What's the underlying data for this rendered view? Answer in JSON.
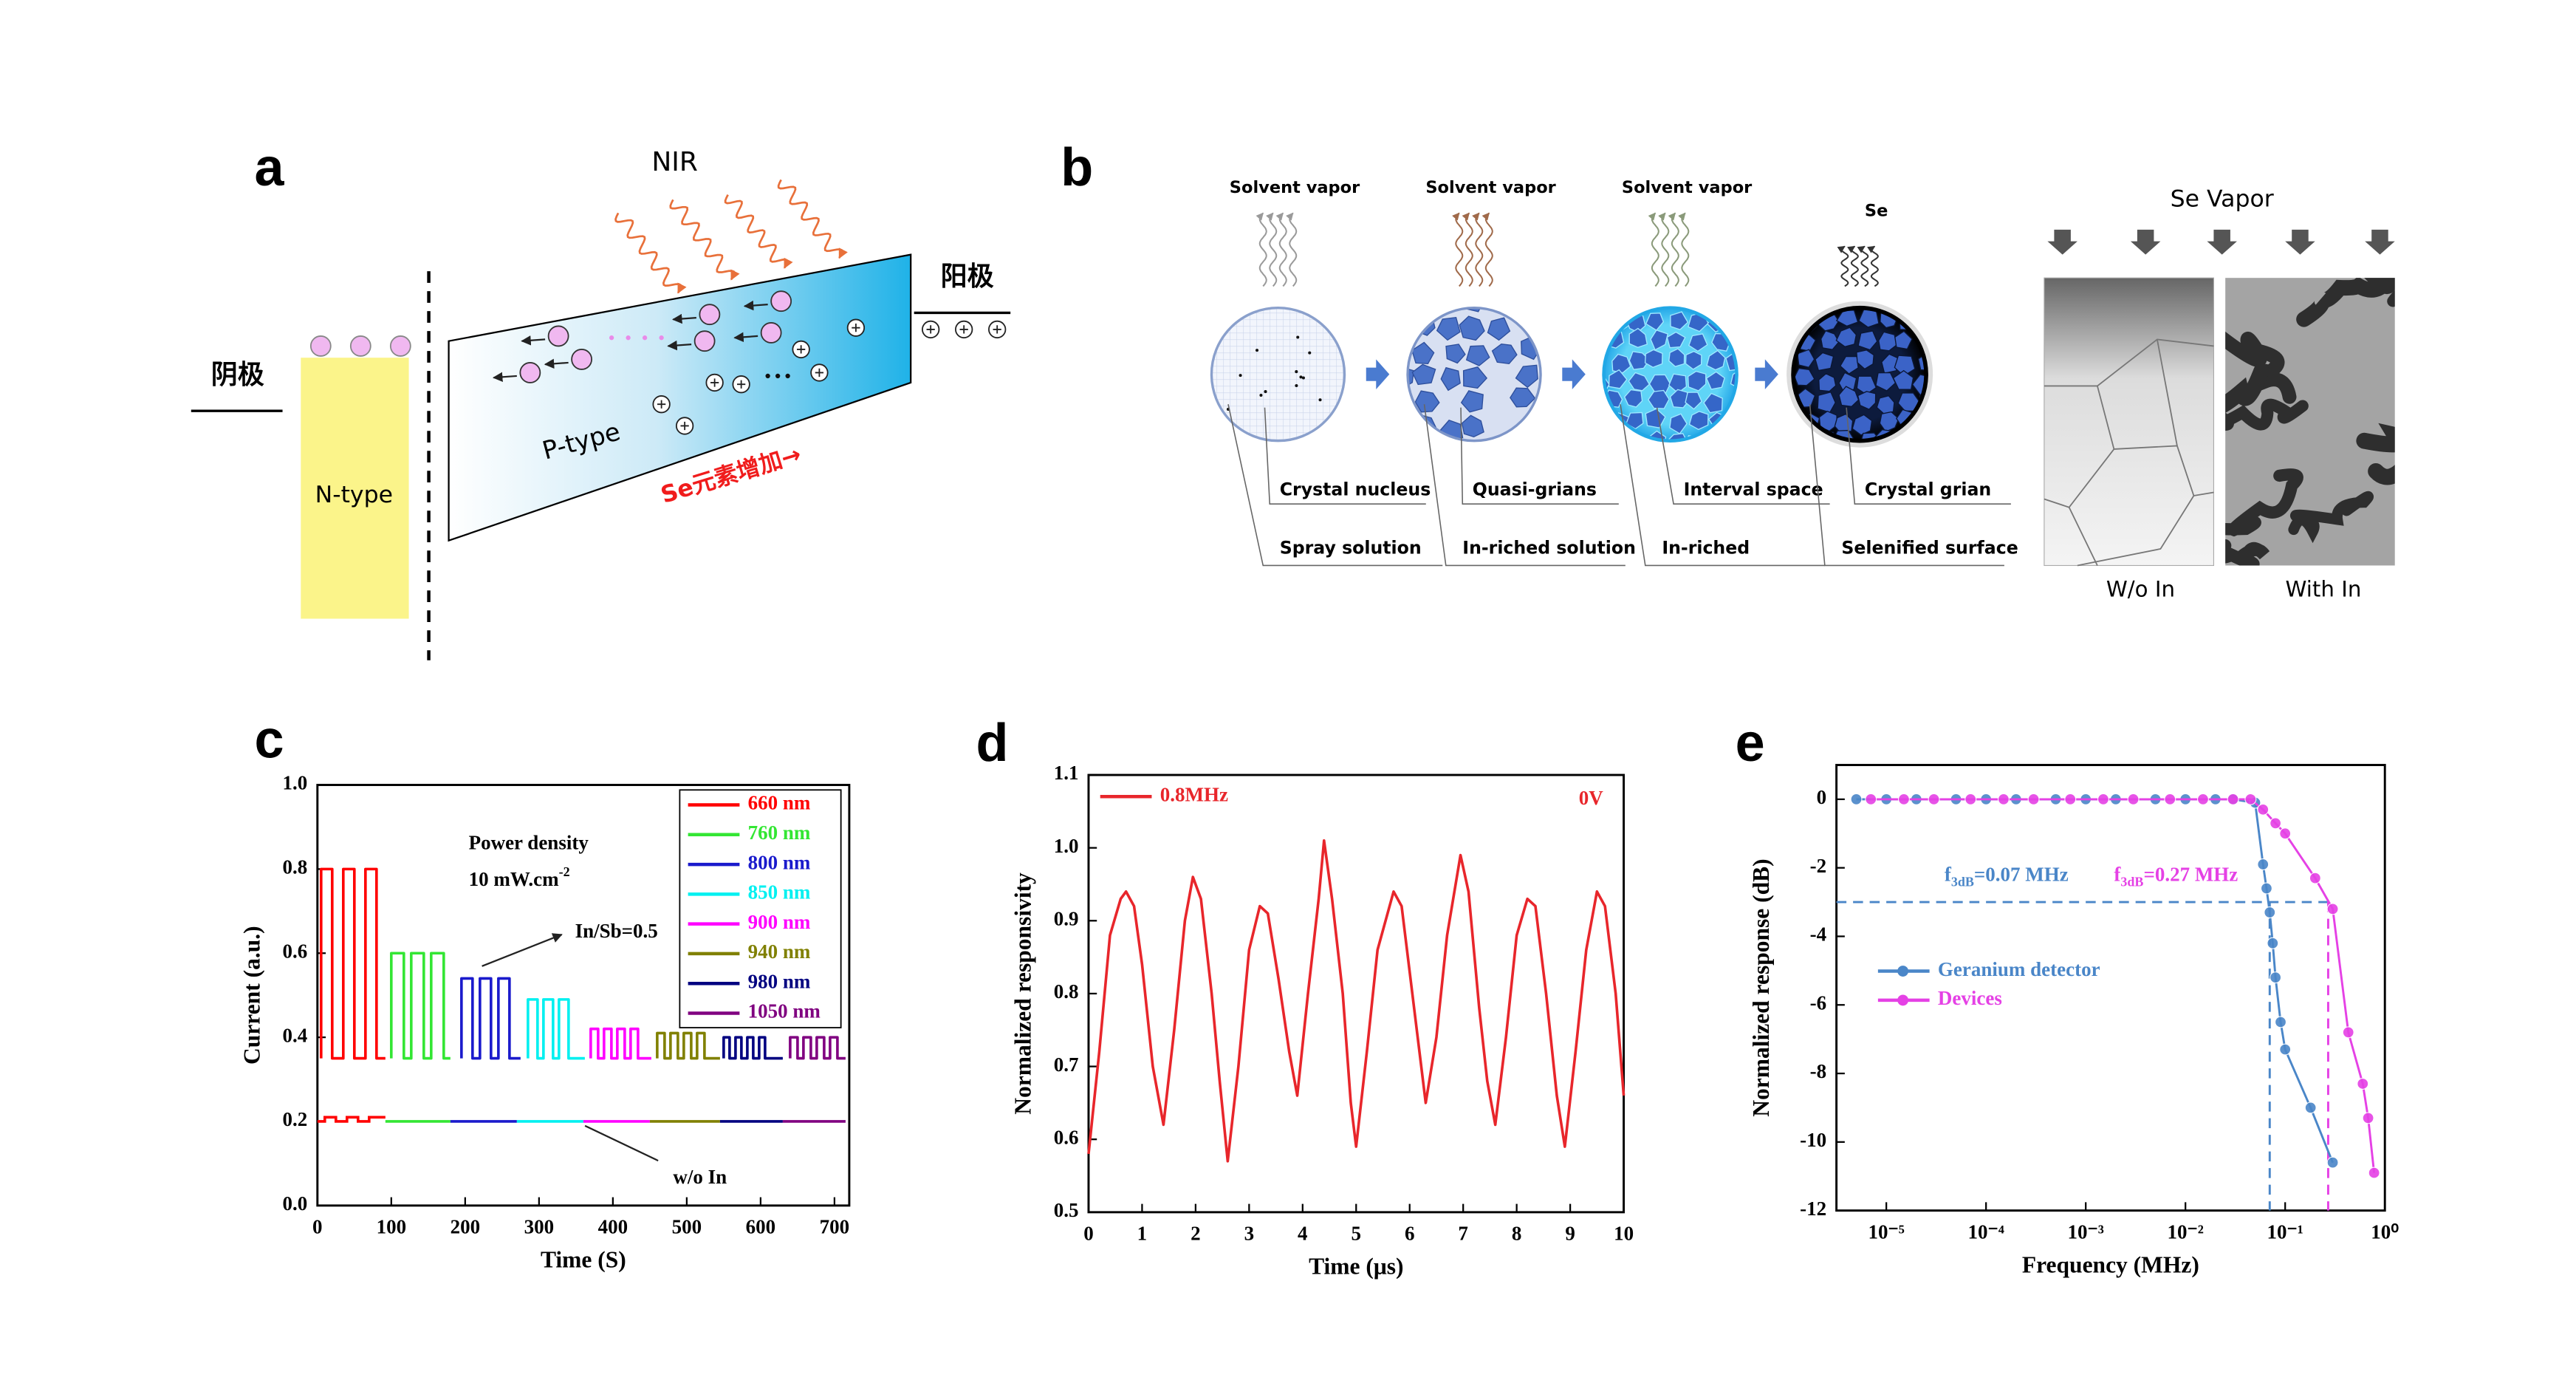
{
  "panel_labels": [
    "a",
    "b",
    "c",
    "d",
    "e"
  ],
  "diagram_a": {
    "light": "NIR",
    "cathode": "阴极",
    "anode": "阳极",
    "n_region": "N-type",
    "p_region": "P-type",
    "gradient_note": "Se元素增加→"
  },
  "diagram_b": {
    "vapors": [
      "Solvent vapor",
      "Solvent vapor",
      "Solvent vapor",
      "Se"
    ],
    "upper_callouts": [
      "Crystal nucleus",
      "Quasi-grians",
      "Interval space",
      "Crystal grian"
    ],
    "lower_callouts": [
      "Spray solution",
      "In-riched solution",
      "In-riched",
      "Selenified surface"
    ],
    "vapor_title": "Se Vapor",
    "image_labels": [
      "W/o In",
      "With In"
    ]
  },
  "chart_data": [
    {
      "type": "line",
      "xlabel": "Time (S)",
      "ylabel": "Current (a.u.)",
      "xlim": [
        0,
        720
      ],
      "xticks": [
        0,
        100,
        200,
        300,
        400,
        500,
        600,
        700
      ],
      "ylim": [
        0,
        1.0
      ],
      "yticks": [
        {
          "value": 0,
          "label": "0.0"
        },
        0.2,
        0.4,
        0.6,
        0.8,
        {
          "value": 1,
          "label": "1.0"
        }
      ],
      "legend": "upper right",
      "legend_frame": true,
      "series": [
        {
          "name": "660 nm",
          "color": "#ff0000",
          "x": [
            5,
            5,
            20,
            20,
            35,
            35,
            50,
            50,
            65,
            65,
            80,
            80,
            92
          ],
          "values": [
            0.35,
            0.8,
            0.8,
            0.35,
            0.35,
            0.8,
            0.8,
            0.35,
            0.35,
            0.8,
            0.8,
            0.35,
            0.35
          ]
        },
        {
          "name": "760 nm",
          "color": "#33e633",
          "x": [
            100,
            100,
            117,
            117,
            127,
            127,
            144,
            144,
            154,
            154,
            171,
            171,
            180
          ],
          "values": [
            0.35,
            0.6,
            0.6,
            0.35,
            0.35,
            0.6,
            0.6,
            0.35,
            0.35,
            0.6,
            0.6,
            0.35,
            0.35
          ]
        },
        {
          "name": "800 nm",
          "color": "#1a1acc",
          "x": [
            195,
            195,
            210,
            210,
            220,
            220,
            235,
            235,
            245,
            245,
            260,
            260,
            275
          ],
          "values": [
            0.35,
            0.54,
            0.54,
            0.35,
            0.35,
            0.54,
            0.54,
            0.35,
            0.35,
            0.54,
            0.54,
            0.35,
            0.35
          ]
        },
        {
          "name": "850 nm",
          "color": "#00f0f0",
          "x": [
            285,
            285,
            298,
            298,
            306,
            306,
            319,
            319,
            327,
            327,
            340,
            340,
            362
          ],
          "values": [
            0.35,
            0.49,
            0.49,
            0.35,
            0.35,
            0.49,
            0.49,
            0.35,
            0.35,
            0.49,
            0.49,
            0.35,
            0.35
          ]
        },
        {
          "name": "900 nm",
          "color": "#ff00ff",
          "x": [
            370,
            370,
            380,
            380,
            388,
            388,
            398,
            398,
            406,
            406,
            416,
            416,
            424,
            424,
            434,
            434,
            452
          ],
          "values": [
            0.35,
            0.42,
            0.42,
            0.35,
            0.35,
            0.42,
            0.42,
            0.35,
            0.35,
            0.42,
            0.42,
            0.35,
            0.35,
            0.42,
            0.42,
            0.35,
            0.35
          ]
        },
        {
          "name": "940 nm",
          "color": "#808000",
          "x": [
            460,
            460,
            470,
            470,
            478,
            478,
            488,
            488,
            496,
            496,
            506,
            506,
            514,
            514,
            524,
            524,
            545
          ],
          "values": [
            0.35,
            0.41,
            0.41,
            0.35,
            0.35,
            0.41,
            0.41,
            0.35,
            0.35,
            0.41,
            0.41,
            0.35,
            0.35,
            0.41,
            0.41,
            0.35,
            0.35
          ]
        },
        {
          "name": "980 nm",
          "color": "#000080",
          "x": [
            550,
            550,
            558,
            558,
            566,
            566,
            574,
            574,
            582,
            582,
            590,
            590,
            598,
            598,
            606,
            606,
            630
          ],
          "values": [
            0.35,
            0.4,
            0.4,
            0.35,
            0.35,
            0.4,
            0.4,
            0.35,
            0.35,
            0.4,
            0.4,
            0.35,
            0.35,
            0.4,
            0.4,
            0.35,
            0.35
          ]
        },
        {
          "name": "1050 nm",
          "color": "#800080",
          "x": [
            640,
            640,
            650,
            650,
            658,
            658,
            668,
            668,
            676,
            676,
            686,
            686,
            694,
            694,
            704,
            704,
            715
          ],
          "values": [
            0.35,
            0.4,
            0.4,
            0.35,
            0.35,
            0.4,
            0.4,
            0.35,
            0.35,
            0.4,
            0.4,
            0.35,
            0.35,
            0.4,
            0.4,
            0.35,
            0.35
          ]
        }
      ],
      "baseline_series": [
        {
          "color": "#ff0000",
          "x": [
            0,
            10,
            10,
            25,
            25,
            40,
            40,
            55,
            55,
            70,
            70,
            92
          ],
          "values": [
            0.2,
            0.2,
            0.21,
            0.21,
            0.2,
            0.2,
            0.21,
            0.21,
            0.2,
            0.2,
            0.21,
            0.21
          ]
        },
        {
          "color": "#33e633",
          "x": [
            92,
            180
          ],
          "values": [
            0.2,
            0.2
          ]
        },
        {
          "color": "#1a1acc",
          "x": [
            180,
            270
          ],
          "values": [
            0.2,
            0.2
          ]
        },
        {
          "color": "#00f0f0",
          "x": [
            270,
            360
          ],
          "values": [
            0.2,
            0.2
          ]
        },
        {
          "color": "#ff00ff",
          "x": [
            360,
            450
          ],
          "values": [
            0.2,
            0.2
          ]
        },
        {
          "color": "#808000",
          "x": [
            450,
            545
          ],
          "values": [
            0.2,
            0.2
          ]
        },
        {
          "color": "#000080",
          "x": [
            545,
            630
          ],
          "values": [
            0.2,
            0.2
          ]
        },
        {
          "color": "#800080",
          "x": [
            630,
            715
          ],
          "values": [
            0.2,
            0.2
          ]
        }
      ],
      "annotations": [
        {
          "text": "Power density"
        },
        {
          "text": "10 mW.cm",
          "sup": "-2"
        },
        {
          "text": "In/Sb=0.5"
        },
        {
          "text": "w/o In"
        }
      ]
    },
    {
      "type": "line",
      "xlabel": "Time (μs)",
      "ylabel": "Normalized responsivity",
      "xlim": [
        0,
        10
      ],
      "xticks": [
        0,
        1,
        2,
        3,
        4,
        5,
        6,
        7,
        8,
        9,
        10
      ],
      "ylim": [
        0.5,
        1.1
      ],
      "yticks": [
        0.5,
        0.6,
        0.7,
        0.8,
        0.9,
        {
          "value": 1,
          "label": "1.0"
        },
        1.1
      ],
      "legend": "upper left",
      "series": [
        {
          "name": "0.8MHz",
          "color": "#e8262b",
          "x": [
            0,
            0.2,
            0.4,
            0.6,
            0.7,
            0.85,
            1.0,
            1.2,
            1.4,
            1.6,
            1.8,
            1.95,
            2.1,
            2.3,
            2.45,
            2.6,
            2.8,
            3.0,
            3.2,
            3.35,
            3.55,
            3.75,
            3.9,
            4.1,
            4.3,
            4.4,
            4.55,
            4.75,
            4.9,
            5.0,
            5.2,
            5.4,
            5.7,
            5.85,
            6.05,
            6.3,
            6.5,
            6.7,
            6.95,
            7.1,
            7.3,
            7.45,
            7.6,
            7.8,
            8.0,
            8.2,
            8.35,
            8.55,
            8.75,
            8.9,
            9.1,
            9.3,
            9.5,
            9.65,
            9.85,
            10
          ],
          "values": [
            0.58,
            0.72,
            0.88,
            0.93,
            0.94,
            0.92,
            0.84,
            0.7,
            0.62,
            0.75,
            0.9,
            0.96,
            0.93,
            0.8,
            0.68,
            0.57,
            0.7,
            0.86,
            0.92,
            0.91,
            0.82,
            0.72,
            0.66,
            0.8,
            0.93,
            1.01,
            0.93,
            0.8,
            0.65,
            0.59,
            0.72,
            0.86,
            0.94,
            0.92,
            0.8,
            0.65,
            0.74,
            0.88,
            0.99,
            0.94,
            0.78,
            0.68,
            0.62,
            0.74,
            0.88,
            0.93,
            0.92,
            0.8,
            0.66,
            0.59,
            0.72,
            0.86,
            0.94,
            0.92,
            0.8,
            0.66
          ]
        }
      ],
      "annotations": [
        {
          "text": "0V"
        }
      ]
    },
    {
      "type": "line",
      "xlog": true,
      "markers": true,
      "xlabel": "Frequency (MHz)",
      "ylabel": "Normalized response (dB)",
      "xlim": [
        3.16e-06,
        1
      ],
      "xticks": [
        {
          "value": 1e-05,
          "label": "10⁻⁵"
        },
        {
          "value": 0.0001,
          "label": "10⁻⁴"
        },
        {
          "value": 0.001,
          "label": "10⁻³"
        },
        {
          "value": 0.01,
          "label": "10⁻²"
        },
        {
          "value": 0.1,
          "label": "10⁻¹"
        },
        {
          "value": 1,
          "label": "10⁰"
        }
      ],
      "ylim": [
        -12,
        1
      ],
      "yticks": [
        0,
        -2,
        -4,
        -6,
        -8,
        -10,
        -12
      ],
      "legend": "center left",
      "threshold": -3,
      "cutoffs": [
        0.07,
        0.27
      ],
      "series": [
        {
          "name": "Geranium detector",
          "color": "#4a86c8",
          "x": [
            5e-06,
            1e-05,
            2e-05,
            5e-05,
            0.0001,
            0.0002,
            0.0005,
            0.001,
            0.002,
            0.005,
            0.01,
            0.02,
            0.03,
            0.05,
            0.06,
            0.065,
            0.07,
            0.075,
            0.08,
            0.09,
            0.1,
            0.18,
            0.3
          ],
          "values": [
            0,
            0,
            0,
            0,
            0,
            0,
            0,
            0,
            0,
            0,
            0,
            0,
            0,
            -0.1,
            -1.9,
            -2.6,
            -3.3,
            -4.2,
            -5.2,
            -6.5,
            -7.3,
            -9.0,
            -10.6
          ]
        },
        {
          "name": "Devices",
          "color": "#e541e5",
          "x": [
            7e-06,
            1.5e-05,
            3e-05,
            7e-05,
            0.00015,
            0.0003,
            0.0007,
            0.0015,
            0.003,
            0.007,
            0.015,
            0.03,
            0.045,
            0.06,
            0.08,
            0.1,
            0.2,
            0.3,
            0.43,
            0.6,
            0.68,
            0.78
          ],
          "values": [
            0,
            0,
            0,
            0,
            0,
            0,
            0,
            0,
            0,
            0,
            0,
            0,
            0,
            -0.3,
            -0.7,
            -1.0,
            -2.3,
            -3.2,
            -6.8,
            -8.3,
            -9.3,
            -10.9
          ]
        }
      ],
      "annotations": [
        {
          "text": "f",
          "sub": "3dB",
          "after": "=0.07 MHz"
        },
        {
          "text": "f",
          "sub": "3dB",
          "after": "=0.27 MHz"
        }
      ]
    }
  ]
}
